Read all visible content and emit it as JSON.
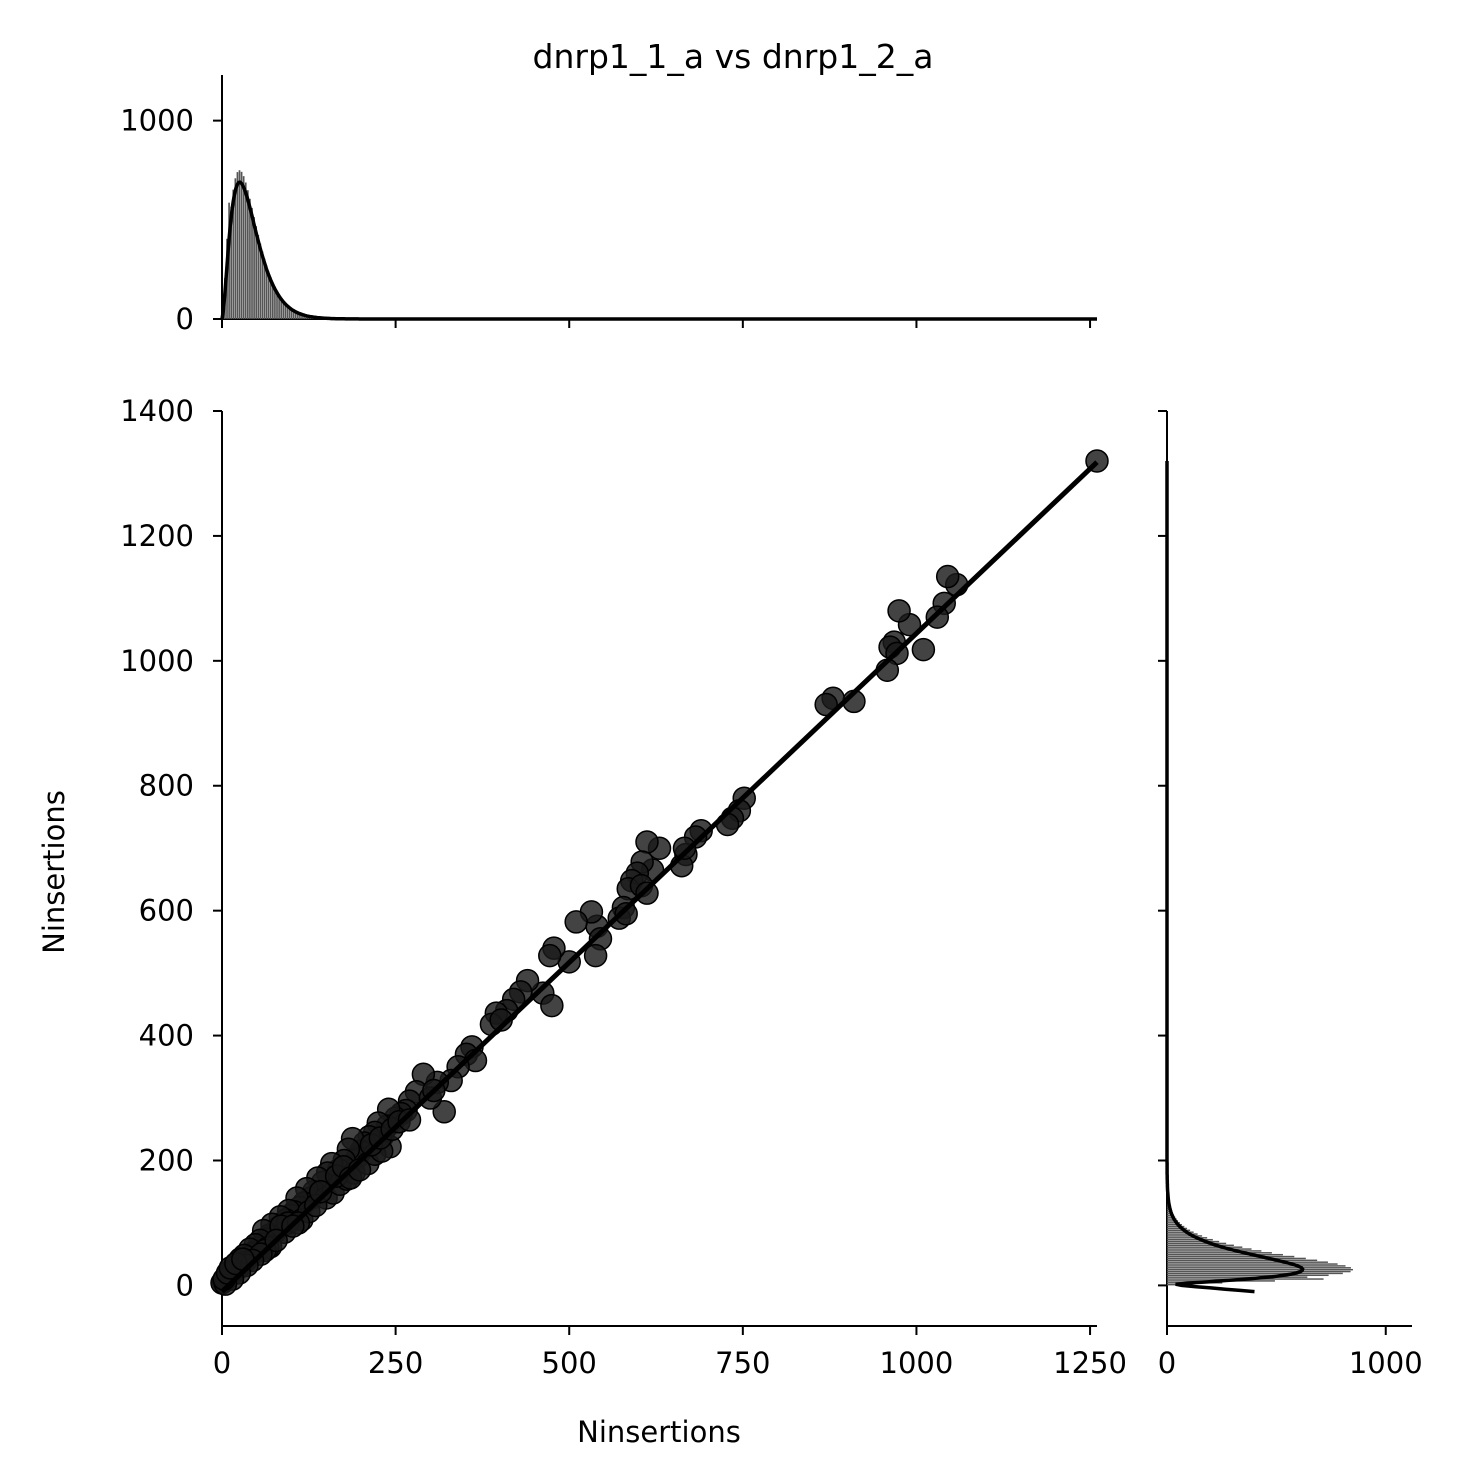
{
  "chart_data": {
    "type": "scatter",
    "title": "dnrp1_1_a vs dnrp1_2_a",
    "xlabel": "Ninsertions",
    "ylabel": "Ninsertions",
    "xlim": [
      0,
      1260
    ],
    "ylim": [
      -65,
      1400
    ],
    "xticks": [
      0,
      250,
      500,
      750,
      1000,
      1250
    ],
    "yticks": [
      0,
      200,
      400,
      600,
      800,
      1000,
      1200,
      1400
    ],
    "top_hist_yticks": [
      0,
      1000
    ],
    "right_hist_xticks": [
      0,
      1000
    ],
    "grid": false,
    "colors": {
      "points": "#1a1a1a",
      "line": "#000000",
      "hist": "#555555"
    },
    "regression": {
      "x": [
        0,
        1260
      ],
      "y": [
        -10,
        1318
      ]
    },
    "points": [
      [
        1260,
        1320
      ],
      [
        1058,
        1122
      ],
      [
        1045,
        1135
      ],
      [
        1040,
        1092
      ],
      [
        1030,
        1070
      ],
      [
        990,
        1058
      ],
      [
        975,
        1080
      ],
      [
        968,
        1030
      ],
      [
        962,
        1022
      ],
      [
        972,
        1012
      ],
      [
        958,
        985
      ],
      [
        1010,
        1018
      ],
      [
        910,
        935
      ],
      [
        880,
        940
      ],
      [
        870,
        930
      ],
      [
        752,
        780
      ],
      [
        745,
        760
      ],
      [
        735,
        748
      ],
      [
        728,
        738
      ],
      [
        690,
        728
      ],
      [
        682,
        718
      ],
      [
        668,
        690
      ],
      [
        662,
        672
      ],
      [
        666,
        700
      ],
      [
        630,
        700
      ],
      [
        612,
        710
      ],
      [
        620,
        665
      ],
      [
        605,
        678
      ],
      [
        598,
        660
      ],
      [
        590,
        648
      ],
      [
        585,
        635
      ],
      [
        604,
        640
      ],
      [
        612,
        628
      ],
      [
        578,
        605
      ],
      [
        572,
        588
      ],
      [
        582,
        595
      ],
      [
        540,
        575
      ],
      [
        532,
        598
      ],
      [
        545,
        555
      ],
      [
        538,
        528
      ],
      [
        510,
        582
      ],
      [
        500,
        518
      ],
      [
        478,
        540
      ],
      [
        472,
        528
      ],
      [
        462,
        468
      ],
      [
        475,
        448
      ],
      [
        440,
        488
      ],
      [
        430,
        470
      ],
      [
        420,
        458
      ],
      [
        410,
        440
      ],
      [
        395,
        436
      ],
      [
        388,
        418
      ],
      [
        402,
        425
      ],
      [
        360,
        382
      ],
      [
        352,
        370
      ],
      [
        365,
        360
      ],
      [
        340,
        350
      ],
      [
        320,
        278
      ],
      [
        330,
        328
      ],
      [
        310,
        325
      ],
      [
        290,
        338
      ],
      [
        280,
        310
      ],
      [
        270,
        295
      ],
      [
        265,
        280
      ],
      [
        258,
        275
      ],
      [
        250,
        268
      ],
      [
        240,
        282
      ],
      [
        238,
        255
      ],
      [
        232,
        240
      ],
      [
        242,
        222
      ],
      [
        225,
        260
      ],
      [
        220,
        245
      ],
      [
        212,
        238
      ],
      [
        205,
        228
      ],
      [
        200,
        215
      ],
      [
        195,
        205
      ],
      [
        188,
        235
      ],
      [
        182,
        218
      ],
      [
        176,
        200
      ],
      [
        168,
        185
      ],
      [
        158,
        195
      ],
      [
        152,
        180
      ],
      [
        145,
        165
      ],
      [
        138,
        172
      ],
      [
        132,
        150
      ],
      [
        128,
        140
      ],
      [
        122,
        155
      ],
      [
        118,
        132
      ],
      [
        112,
        125
      ],
      [
        108,
        140
      ],
      [
        104,
        118
      ],
      [
        100,
        112
      ],
      [
        96,
        120
      ],
      [
        92,
        105
      ],
      [
        88,
        98
      ],
      [
        84,
        110
      ],
      [
        80,
        92
      ],
      [
        76,
        85
      ],
      [
        72,
        98
      ],
      [
        68,
        80
      ],
      [
        64,
        74
      ],
      [
        60,
        88
      ],
      [
        58,
        66
      ],
      [
        55,
        72
      ],
      [
        52,
        60
      ],
      [
        50,
        55
      ],
      [
        48,
        65
      ],
      [
        45,
        52
      ],
      [
        42,
        50
      ],
      [
        40,
        58
      ],
      [
        38,
        45
      ],
      [
        35,
        40
      ],
      [
        32,
        48
      ],
      [
        30,
        36
      ],
      [
        28,
        34
      ],
      [
        26,
        42
      ],
      [
        24,
        28
      ],
      [
        22,
        30
      ],
      [
        20,
        26
      ],
      [
        18,
        32
      ],
      [
        16,
        20
      ],
      [
        14,
        24
      ],
      [
        12,
        16
      ],
      [
        10,
        18
      ],
      [
        8,
        12
      ],
      [
        6,
        14
      ],
      [
        4,
        8
      ],
      [
        2,
        6
      ],
      [
        0,
        4
      ],
      [
        150,
        140
      ],
      [
        160,
        148
      ],
      [
        170,
        162
      ],
      [
        180,
        170
      ],
      [
        190,
        180
      ],
      [
        210,
        195
      ],
      [
        220,
        210
      ],
      [
        230,
        215
      ],
      [
        115,
        105
      ],
      [
        125,
        118
      ],
      [
        135,
        128
      ],
      [
        142,
        150
      ],
      [
        90,
        85
      ],
      [
        95,
        100
      ],
      [
        70,
        62
      ],
      [
        66,
        60
      ],
      [
        62,
        56
      ],
      [
        56,
        50
      ],
      [
        44,
        40
      ],
      [
        36,
        32
      ],
      [
        25,
        20
      ],
      [
        15,
        10
      ],
      [
        5,
        2
      ],
      [
        3,
        10
      ],
      [
        8,
        20
      ],
      [
        12,
        28
      ],
      [
        20,
        35
      ],
      [
        30,
        42
      ],
      [
        85,
        95
      ],
      [
        78,
        72
      ],
      [
        110,
        100
      ],
      [
        102,
        95
      ],
      [
        165,
        175
      ],
      [
        175,
        190
      ],
      [
        185,
        172
      ],
      [
        198,
        185
      ],
      [
        215,
        225
      ],
      [
        228,
        236
      ],
      [
        245,
        250
      ],
      [
        255,
        262
      ],
      [
        270,
        265
      ],
      [
        300,
        300
      ],
      [
        305,
        312
      ]
    ]
  }
}
